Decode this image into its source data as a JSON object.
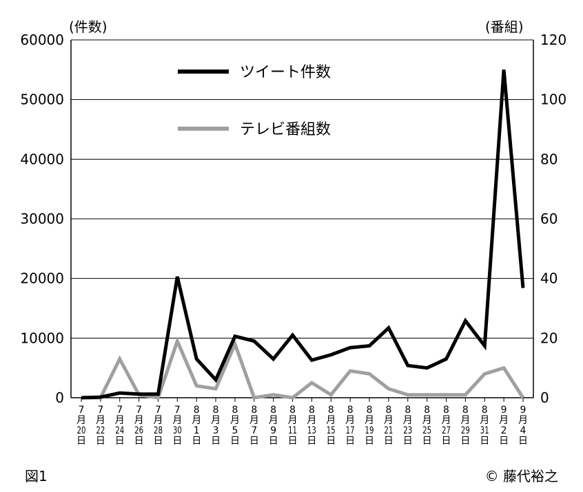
{
  "chart_data": {
    "type": "line",
    "left_axis_unit": "(件数)",
    "right_axis_unit": "(番組)",
    "left_ylim": [
      0,
      60000
    ],
    "right_ylim": [
      0,
      120
    ],
    "left_ticks": [
      "0",
      "10000",
      "20000",
      "30000",
      "40000",
      "50000",
      "60000"
    ],
    "right_ticks": [
      "0",
      "20",
      "40",
      "60",
      "80",
      "100",
      "120"
    ],
    "grid": true,
    "legend_placement": "top-left",
    "categories": [
      {
        "month": "7",
        "m": "月",
        "day": "20",
        "d": "日"
      },
      {
        "month": "7",
        "m": "月",
        "day": "22",
        "d": "日"
      },
      {
        "month": "7",
        "m": "月",
        "day": "24",
        "d": "日"
      },
      {
        "month": "7",
        "m": "月",
        "day": "26",
        "d": "日"
      },
      {
        "month": "7",
        "m": "月",
        "day": "28",
        "d": "日"
      },
      {
        "month": "7",
        "m": "月",
        "day": "30",
        "d": "日"
      },
      {
        "month": "8",
        "m": "月",
        "day": "1",
        "d": "日"
      },
      {
        "month": "8",
        "m": "月",
        "day": "3",
        "d": "日"
      },
      {
        "month": "8",
        "m": "月",
        "day": "5",
        "d": "日"
      },
      {
        "month": "8",
        "m": "月",
        "day": "7",
        "d": "日"
      },
      {
        "month": "8",
        "m": "月",
        "day": "9",
        "d": "日"
      },
      {
        "month": "8",
        "m": "月",
        "day": "11",
        "d": "日"
      },
      {
        "month": "8",
        "m": "月",
        "day": "13",
        "d": "日"
      },
      {
        "month": "8",
        "m": "月",
        "day": "15",
        "d": "日"
      },
      {
        "month": "8",
        "m": "月",
        "day": "17",
        "d": "日"
      },
      {
        "month": "8",
        "m": "月",
        "day": "19",
        "d": "日"
      },
      {
        "month": "8",
        "m": "月",
        "day": "21",
        "d": "日"
      },
      {
        "month": "8",
        "m": "月",
        "day": "23",
        "d": "日"
      },
      {
        "month": "8",
        "m": "月",
        "day": "25",
        "d": "日"
      },
      {
        "month": "8",
        "m": "月",
        "day": "27",
        "d": "日"
      },
      {
        "month": "8",
        "m": "月",
        "day": "29",
        "d": "日"
      },
      {
        "month": "8",
        "m": "月",
        "day": "31",
        "d": "日"
      },
      {
        "month": "9",
        "m": "月",
        "day": "2",
        "d": "日"
      },
      {
        "month": "9",
        "m": "月",
        "day": "4",
        "d": "日"
      }
    ],
    "series": [
      {
        "name": "ツイート件数",
        "axis": "left",
        "color": "#000000",
        "values": [
          0,
          100,
          800,
          600,
          600,
          20300,
          6500,
          3000,
          10300,
          9500,
          6500,
          10500,
          6300,
          7200,
          8400,
          8700,
          11700,
          5400,
          5000,
          6500,
          12900,
          8700,
          55000,
          18400
        ]
      },
      {
        "name": "テレビ番組数",
        "axis": "right",
        "color": "#a0a0a0",
        "values": [
          0,
          0,
          13,
          1,
          0,
          19,
          4,
          3,
          18,
          0,
          1,
          0,
          5,
          1,
          9,
          8,
          3,
          1,
          1,
          1,
          1,
          8,
          10,
          0
        ]
      }
    ]
  },
  "figure_label": "図1",
  "credit": "© 藤代裕之"
}
